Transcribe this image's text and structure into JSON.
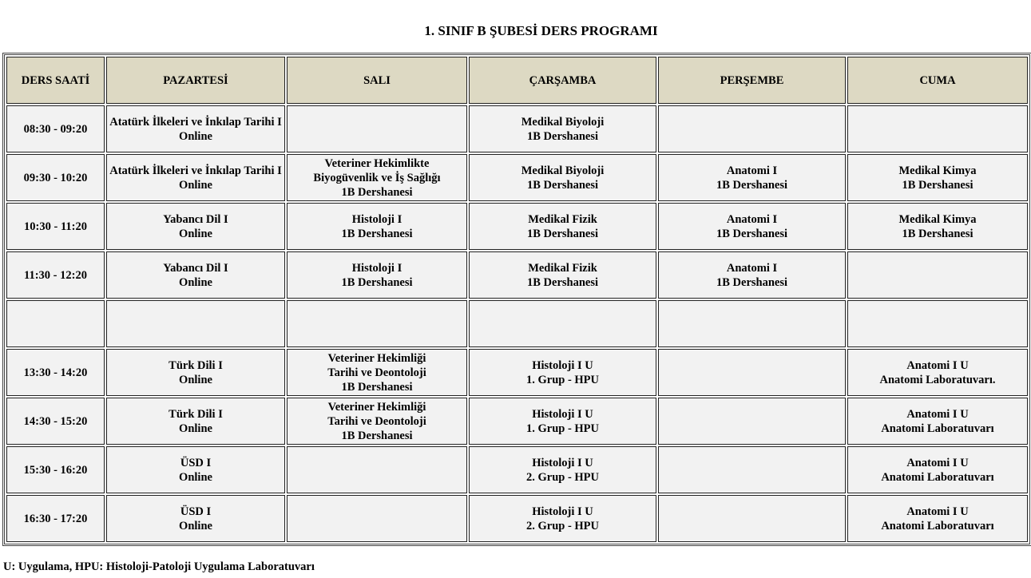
{
  "title": "1. SINIF B ŞUBESİ DERS PROGRAMI",
  "headers": [
    "DERS SAATİ",
    "PAZARTESİ",
    "SALI",
    "ÇARŞAMBA",
    "PERŞEMBE",
    "CUMA"
  ],
  "rows": [
    {
      "time": "08:30 - 09:20",
      "cells": [
        [
          "Atatürk İlkeleri ve İnkılap Tarihi I",
          "Online"
        ],
        [],
        [
          "Medikal Biyoloji",
          "1B Dershanesi"
        ],
        [],
        []
      ]
    },
    {
      "time": "09:30 - 10:20",
      "cells": [
        [
          "Atatürk İlkeleri ve İnkılap Tarihi I",
          "Online"
        ],
        [
          "Veteriner Hekimlikte",
          "Biyogüvenlik ve İş Sağlığı",
          "1B Dershanesi"
        ],
        [
          "Medikal Biyoloji",
          "1B Dershanesi"
        ],
        [
          "Anatomi I",
          "1B Dershanesi"
        ],
        [
          "Medikal Kimya",
          "1B Dershanesi"
        ]
      ]
    },
    {
      "time": "10:30 - 11:20",
      "cells": [
        [
          "Yabancı Dil I",
          "Online"
        ],
        [
          "Histoloji I",
          "1B Dershanesi"
        ],
        [
          "Medikal Fizik",
          "1B Dershanesi"
        ],
        [
          "Anatomi I",
          "1B Dershanesi"
        ],
        [
          "Medikal Kimya",
          "1B Dershanesi"
        ]
      ]
    },
    {
      "time": "11:30 - 12:20",
      "cells": [
        [
          "Yabancı Dil I",
          "Online"
        ],
        [
          "Histoloji I",
          "1B Dershanesi"
        ],
        [
          "Medikal Fizik",
          "1B Dershanesi"
        ],
        [
          "Anatomi I",
          "1B Dershanesi"
        ],
        []
      ]
    },
    {
      "time": "",
      "cells": [
        [],
        [],
        [],
        [],
        []
      ]
    },
    {
      "time": "13:30 - 14:20",
      "cells": [
        [
          "Türk Dili I",
          "Online"
        ],
        [
          "Veteriner Hekimliği",
          "Tarihi ve Deontoloji",
          "1B Dershanesi"
        ],
        [
          "Histoloji I U",
          "1. Grup - HPU"
        ],
        [],
        [
          "Anatomi I U",
          "Anatomi Laboratuvarı."
        ]
      ]
    },
    {
      "time": "14:30 - 15:20",
      "cells": [
        [
          "Türk Dili I",
          "Online"
        ],
        [
          "Veteriner Hekimliği",
          "Tarihi ve Deontoloji",
          "1B Dershanesi"
        ],
        [
          "Histoloji I U",
          "1. Grup - HPU"
        ],
        [],
        [
          "Anatomi I U",
          "Anatomi Laboratuvarı"
        ]
      ]
    },
    {
      "time": "15:30 - 16:20",
      "cells": [
        [
          "ÜSD I",
          "Online"
        ],
        [],
        [
          "Histoloji I U",
          "2. Grup - HPU"
        ],
        [],
        [
          "Anatomi I U",
          "Anatomi Laboratuvarı"
        ]
      ]
    },
    {
      "time": "16:30 - 17:20",
      "cells": [
        [
          "ÜSD I",
          "Online"
        ],
        [],
        [
          "Histoloji I U",
          "2. Grup - HPU"
        ],
        [],
        [
          "Anatomi I U",
          "Anatomi Laboratuvarı"
        ]
      ]
    }
  ],
  "footer": "U: Uygulama, HPU: Histoloji-Patoloji Uygulama Laboratuvarı",
  "colors": {
    "header_bg": "#ddd9c3",
    "cell_bg": "#f2f2f2"
  }
}
